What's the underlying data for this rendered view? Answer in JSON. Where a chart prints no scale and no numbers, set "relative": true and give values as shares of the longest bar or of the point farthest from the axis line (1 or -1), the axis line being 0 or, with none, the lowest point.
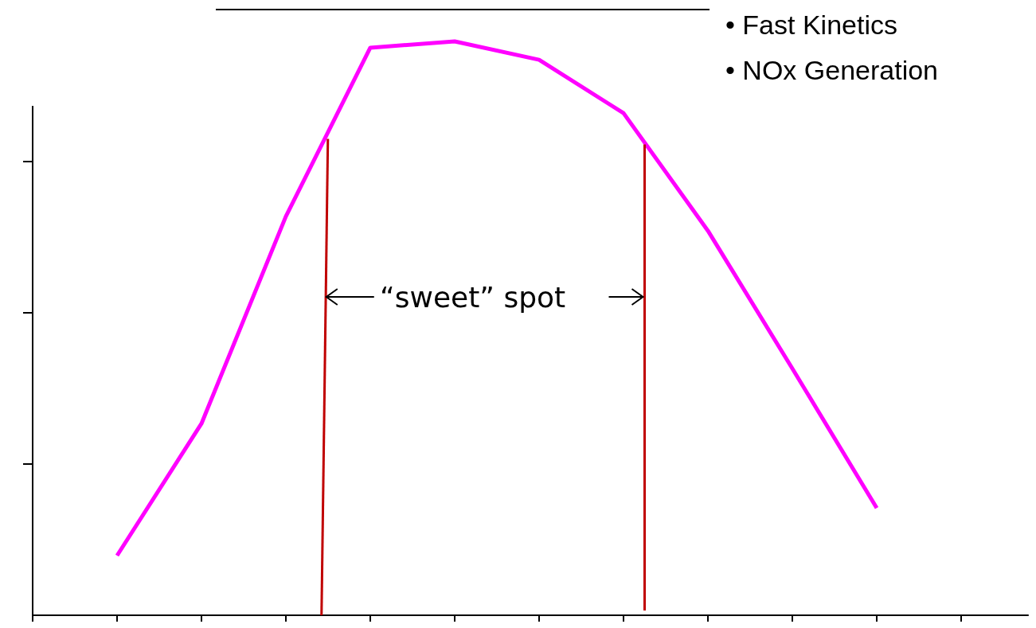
{
  "chart_data": {
    "type": "line",
    "relative": true,
    "categories": [
      null,
      null,
      null,
      null,
      null,
      null,
      null,
      null,
      null,
      null
    ],
    "values": [
      0.104,
      0.334,
      0.695,
      0.989,
      1.0,
      0.968,
      0.875,
      0.67,
      0.43,
      0.187
    ],
    "color": "#ff00ff",
    "grid": false,
    "marker": "none",
    "line_style": "solid",
    "annotations": [
      "“sweet” spot",
      "• Fast Kinetics",
      "• NOx Generation"
    ]
  }
}
